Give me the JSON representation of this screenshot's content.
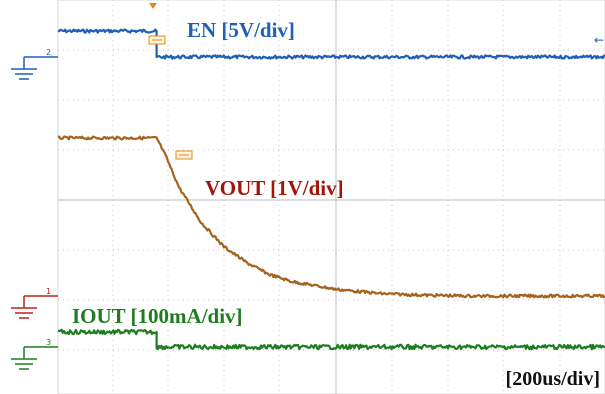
{
  "chart_data": {
    "type": "line",
    "title": "",
    "xlabel": "",
    "ylabel": "",
    "timebase_label": "[200us/div]",
    "x_unit": "us",
    "x_range": [
      -220,
      1000
    ],
    "grid": true,
    "series": [
      {
        "name": "EN [5V/div]",
        "color": "#1f5fb4",
        "label_color": "#1f5fb4",
        "scale": "5V/div",
        "x": [
          -220,
          0,
          0,
          1000
        ],
        "y": [
          5.0,
          5.0,
          0.0,
          0.0
        ]
      },
      {
        "name": "VOUT [1V/div]",
        "color": "#a5621c",
        "label_color": "#a0140a",
        "scale": "1V/div",
        "x": [
          -220,
          0,
          20,
          50,
          100,
          150,
          200,
          250,
          300,
          400,
          500,
          600,
          700,
          800,
          1000
        ],
        "y": [
          4.0,
          4.0,
          3.55,
          2.75,
          1.85,
          1.25,
          0.85,
          0.55,
          0.37,
          0.17,
          0.06,
          0.02,
          0.0,
          0.0,
          0.0
        ]
      },
      {
        "name": "IOUT [100mA/div]",
        "color": "#1e7d1e",
        "label_color": "#1e7d1e",
        "scale": "100mA/div",
        "x": [
          -220,
          0,
          0,
          1000
        ],
        "y": [
          40,
          40,
          0,
          0
        ]
      }
    ],
    "channel_markers": [
      "2",
      "1",
      "3"
    ]
  }
}
